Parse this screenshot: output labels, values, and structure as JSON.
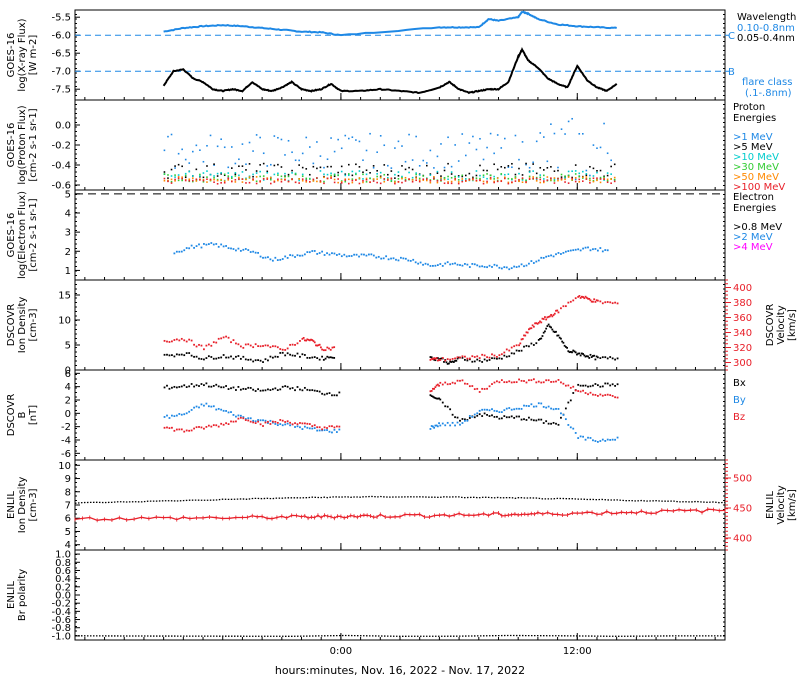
{
  "colors": {
    "black": "#000000",
    "blue": "#1e88e5",
    "xray_long": "#1e88e5",
    "cyan": "#00cccc",
    "green": "#33cc33",
    "orange": "#ff8800",
    "red": "#e8202a",
    "magenta": "#ff00ff",
    "dashed_blue": "#1e88e5"
  },
  "footer": {
    "xlabel": "hours:minutes, Nov. 16, 2022 - Nov. 17, 2022"
  },
  "chart_data": [
    {
      "id": "xray",
      "type": "line",
      "ylabel": [
        "GOES-16",
        "log(X-ray Flux)",
        "[W m-2]"
      ],
      "ylim": [
        -7.8,
        -5.3
      ],
      "yticks": [
        "-5.5",
        "-6.0",
        "-6.5",
        "-7.0",
        "-7.5"
      ],
      "x_ticks": [
        "0:00",
        "12:00"
      ],
      "legend": {
        "title": "Wavelength",
        "entries": [
          {
            "label": "0.10-0.8nm",
            "color": "#1e88e5"
          },
          {
            "label": "0.05-0.4nm",
            "color": "#000000"
          }
        ],
        "flare_title": "flare class",
        "flare_sub": "(.1-.8nm)"
      },
      "flare_lines": [
        {
          "label": "C",
          "value": -6.0
        },
        {
          "label": "B",
          "value": -7.0
        }
      ],
      "series": [
        {
          "name": "0.10-0.8nm",
          "color": "#1e88e5",
          "x": [
            -9,
            -8,
            -7,
            -6,
            -5,
            -4,
            -3,
            -2,
            -1,
            0,
            5,
            6,
            7,
            7.5,
            8,
            9,
            9.2,
            9.5,
            10,
            11,
            12,
            13,
            14
          ],
          "y": [
            -5.9,
            -5.8,
            -5.75,
            -5.72,
            -5.75,
            -5.8,
            -5.85,
            -5.9,
            -5.92,
            -6.0,
            -5.78,
            -5.78,
            -5.78,
            -5.55,
            -5.6,
            -5.5,
            -5.35,
            -5.4,
            -5.55,
            -5.7,
            -5.75,
            -5.78,
            -5.8
          ]
        },
        {
          "name": "0.05-0.4nm",
          "color": "#000000",
          "x": [
            -9,
            -8.5,
            -8,
            -7.5,
            -7,
            -6.5,
            -6,
            -5.5,
            -5,
            -4.5,
            -4,
            -3.5,
            -3,
            -2.5,
            -2,
            -1.5,
            -1,
            -0.5,
            0,
            1,
            2,
            3,
            4,
            5,
            5.5,
            6,
            6.5,
            7,
            7.5,
            8,
            8.5,
            9,
            9.2,
            9.5,
            10,
            10.5,
            11,
            11.5,
            12,
            12.5,
            13,
            13.5,
            14
          ],
          "y": [
            -7.4,
            -7.0,
            -6.95,
            -7.2,
            -7.3,
            -7.5,
            -7.55,
            -7.5,
            -7.55,
            -7.3,
            -7.5,
            -7.55,
            -7.45,
            -7.3,
            -7.5,
            -7.55,
            -7.5,
            -7.35,
            -7.55,
            -7.55,
            -7.5,
            -7.55,
            -7.6,
            -7.45,
            -7.3,
            -7.5,
            -7.6,
            -7.55,
            -7.5,
            -7.5,
            -7.3,
            -6.6,
            -6.4,
            -6.7,
            -6.9,
            -7.2,
            -7.35,
            -7.45,
            -6.85,
            -7.25,
            -7.45,
            -7.55,
            -7.35
          ]
        }
      ]
    },
    {
      "id": "proton",
      "type": "scatter",
      "ylabel": [
        "GOES-16",
        "log(Proton Flux)",
        "[cm-2 s-1 sr-1]"
      ],
      "ylim": [
        -0.65,
        0.25
      ],
      "yticks": [
        "0.0",
        "-0.2",
        "-0.4",
        "-0.6"
      ],
      "legend": {
        "title": "Proton",
        "title2": "Energies",
        "entries": [
          {
            "label": ">1 MeV",
            "color": "#1e88e5"
          },
          {
            "label": ">5 MeV",
            "color": "#000000"
          },
          {
            "label": ">10 MeV",
            "color": "#00cccc"
          },
          {
            "label": ">30 MeV",
            "color": "#33cc33"
          },
          {
            "label": ">50 MeV",
            "color": "#ff8800"
          },
          {
            "label": ">100 MeV",
            "color": "#e8202a"
          }
        ]
      },
      "series": [
        {
          "name": ">1 MeV",
          "color": "#1e88e5",
          "x_range": [
            -9,
            14
          ],
          "y_base": -0.25,
          "y_spread": 0.35
        },
        {
          "name": ">5 MeV",
          "color": "#000000",
          "x_range": [
            -9,
            14
          ],
          "y_base": -0.45,
          "y_spread": 0.15
        },
        {
          "name": ">10 MeV",
          "color": "#00cccc",
          "x_range": [
            -9,
            14
          ],
          "y_base": -0.5,
          "y_spread": 0.1
        },
        {
          "name": ">30 MeV",
          "color": "#33cc33",
          "x_range": [
            -9,
            14
          ],
          "y_base": -0.52,
          "y_spread": 0.08
        },
        {
          "name": ">50 MeV",
          "color": "#ff8800",
          "x_range": [
            -9,
            14
          ],
          "y_base": -0.54,
          "y_spread": 0.06
        },
        {
          "name": ">100 MeV",
          "color": "#e8202a",
          "x_range": [
            -9,
            14
          ],
          "y_base": -0.55,
          "y_spread": 0.06
        }
      ]
    },
    {
      "id": "electron",
      "type": "scatter",
      "ylabel": [
        "GOES-16",
        "log(Electron Flux)",
        "[cm-2 s-1 sr-1]"
      ],
      "ylim": [
        0.5,
        5.2
      ],
      "yticks": [
        "5",
        "4",
        "3",
        "2",
        "1"
      ],
      "dashed_level": 5,
      "legend": {
        "title": "Electron",
        "title2": "Energies",
        "entries": [
          {
            "label": ">0.8 MeV",
            "color": "#000000"
          },
          {
            "label": ">2 MeV",
            "color": "#1e88e5"
          },
          {
            "label": ">4 MeV",
            "color": "#ff00ff"
          }
        ]
      },
      "series": [
        {
          "name": ">2 MeV",
          "color": "#1e88e5",
          "x": [
            -8.5,
            -7.5,
            -6.5,
            -5.5,
            -4.5,
            -3.5,
            -2.5,
            -1.5,
            -0.5,
            0.5,
            1.5,
            2.5,
            3.5,
            4.5,
            5.5,
            6.5,
            7.5,
            8.5,
            9.5,
            10.5,
            11.5,
            12.5,
            13.5
          ],
          "y": [
            2.0,
            2.3,
            2.4,
            2.2,
            2.0,
            1.6,
            1.8,
            2.0,
            1.9,
            1.8,
            1.8,
            1.7,
            1.6,
            1.3,
            1.4,
            1.3,
            1.3,
            1.2,
            1.4,
            1.8,
            2.0,
            2.2,
            2.1
          ]
        }
      ]
    },
    {
      "id": "dscovr_density",
      "type": "scatter",
      "ylabel": [
        "DSCOVR",
        "Ion Density",
        "[cm-3]"
      ],
      "ylabel_right": [
        "DSCOVR",
        "Velocity",
        "[km/s]"
      ],
      "ylim": [
        0,
        18
      ],
      "yticks": [
        "15",
        "10",
        "5",
        "0"
      ],
      "ylim_right": [
        290,
        410
      ],
      "yticks_right": [
        "400",
        "380",
        "360",
        "340",
        "320",
        "300"
      ],
      "series": [
        {
          "name": "Density",
          "color": "#000000",
          "x": [
            -9,
            -8,
            -7,
            -6,
            -5,
            -4,
            -3,
            -2,
            -1,
            -0.3,
            4.5,
            5,
            5.5,
            6,
            7,
            8,
            9,
            10,
            10.5,
            11,
            11.5,
            12,
            12.5,
            13,
            14
          ],
          "y": [
            3,
            3.5,
            2.5,
            3,
            2.5,
            2,
            3.5,
            3,
            2.5,
            3,
            2.5,
            2.5,
            1.5,
            2.5,
            2,
            2.5,
            4,
            6,
            9,
            7,
            4,
            3.5,
            3,
            2.5,
            2.5
          ]
        },
        {
          "name": "Velocity",
          "color": "#e8202a",
          "x": [
            -9,
            -8,
            -7,
            -6,
            -5,
            -4,
            -3,
            -2,
            -1.5,
            -1,
            -0.3,
            4.5,
            5,
            6,
            7,
            8,
            9,
            9.5,
            10,
            10.5,
            11,
            12,
            12.5,
            13,
            14
          ],
          "y": [
            330,
            333,
            320,
            335,
            323,
            325,
            318,
            332,
            330,
            320,
            320,
            306,
            305,
            307,
            309,
            311,
            325,
            345,
            355,
            362,
            370,
            390,
            386,
            382,
            380
          ]
        }
      ]
    },
    {
      "id": "dscovr_field",
      "type": "scatter",
      "ylabel": [
        "DSCOVR",
        "B",
        "[nT]"
      ],
      "ylim": [
        -7,
        6.5
      ],
      "yticks": [
        "6",
        "4",
        "2",
        "0",
        "-2",
        "-4",
        "-6"
      ],
      "legend": {
        "entries": [
          {
            "label": "Bx",
            "color": "#000000"
          },
          {
            "label": "By",
            "color": "#1e88e5"
          },
          {
            "label": "Bz",
            "color": "#e8202a"
          }
        ]
      },
      "series": [
        {
          "name": "Bx",
          "color": "#000000",
          "x": [
            -9,
            -8,
            -7,
            -6,
            -5,
            -4,
            -3,
            -2,
            -1,
            0,
            4.5,
            5,
            6,
            7,
            8,
            9,
            10,
            11,
            12,
            13,
            14
          ],
          "y": [
            4,
            4.2,
            4.5,
            4.0,
            3.8,
            3.5,
            4.0,
            3.8,
            3.2,
            3.0,
            3.0,
            2.0,
            -1.0,
            0,
            -0.5,
            -0.5,
            -1.0,
            -1.5,
            4.5,
            4.3,
            4.5
          ]
        },
        {
          "name": "By",
          "color": "#1e88e5",
          "x": [
            -9,
            -8,
            -7,
            -6,
            -5,
            -4,
            -3,
            -2,
            -1,
            0,
            4.5,
            5,
            6,
            7,
            8,
            9,
            10,
            11,
            12,
            13,
            14
          ],
          "y": [
            -0.5,
            0,
            1.5,
            0.5,
            -0.5,
            -1.0,
            -1.5,
            -2.0,
            -2.5,
            -2.5,
            -2.0,
            -1.5,
            -1.5,
            0.5,
            0.5,
            1.0,
            1.5,
            0.8,
            -3.5,
            -4.0,
            -3.5
          ]
        },
        {
          "name": "Bz",
          "color": "#e8202a",
          "x": [
            -9,
            -8,
            -7,
            -6,
            -5,
            -4,
            -3,
            -2,
            -1,
            0,
            4.5,
            5,
            6,
            7,
            8,
            9,
            10,
            11,
            12,
            13,
            14
          ],
          "y": [
            -2.0,
            -2.5,
            -2.0,
            -1.5,
            -0.5,
            -1.5,
            -1.0,
            -1.5,
            -2.0,
            -2.0,
            3.5,
            4.5,
            5.0,
            3.5,
            5.0,
            5.0,
            5.0,
            5.0,
            3.5,
            3.0,
            2.5
          ]
        }
      ]
    },
    {
      "id": "enlil_density",
      "type": "line",
      "ylabel": [
        "ENLIL",
        "Ion Density",
        "[cm-3]"
      ],
      "ylabel_right": [
        "ENLIL",
        "Velocity",
        "[km/s]"
      ],
      "ylim": [
        3.6,
        10.4
      ],
      "yticks": [
        "10",
        "9",
        "8",
        "7",
        "6",
        "5",
        "4"
      ],
      "ylim_right": [
        380,
        530
      ],
      "yticks_right": [
        "500",
        "450",
        "400"
      ],
      "series": [
        {
          "name": "Density",
          "color": "#000000",
          "x": [
            -13.5,
            -9,
            -5,
            -2,
            0,
            2,
            5,
            8,
            10,
            13,
            16,
            19.5
          ],
          "y": [
            7.15,
            7.3,
            7.45,
            7.55,
            7.6,
            7.62,
            7.6,
            7.55,
            7.5,
            7.4,
            7.3,
            7.2
          ]
        },
        {
          "name": "Velocity",
          "color": "#e8202a",
          "x": [
            -13.5,
            -9,
            -5,
            -2,
            0,
            2,
            5,
            8,
            10,
            13,
            16,
            19.5
          ],
          "y": [
            432,
            433,
            434,
            435,
            436,
            437,
            438,
            439,
            440,
            442,
            444,
            446
          ]
        }
      ]
    },
    {
      "id": "enlil_polarity",
      "type": "line",
      "ylabel": [
        "ENLIL",
        "Br polarity"
      ],
      "ylim": [
        -1.1,
        1.1
      ],
      "yticks": [
        "1.0",
        "0.8",
        "0.6",
        "0.4",
        "0.2",
        "0.0",
        "-0.2",
        "-0.4",
        "-0.6",
        "-0.8",
        "-1.0"
      ],
      "series": [
        {
          "name": "Br polarity",
          "color": "#000000",
          "x": [
            -13.5,
            19.5
          ],
          "y": [
            -1.0,
            -1.0
          ]
        }
      ]
    }
  ]
}
